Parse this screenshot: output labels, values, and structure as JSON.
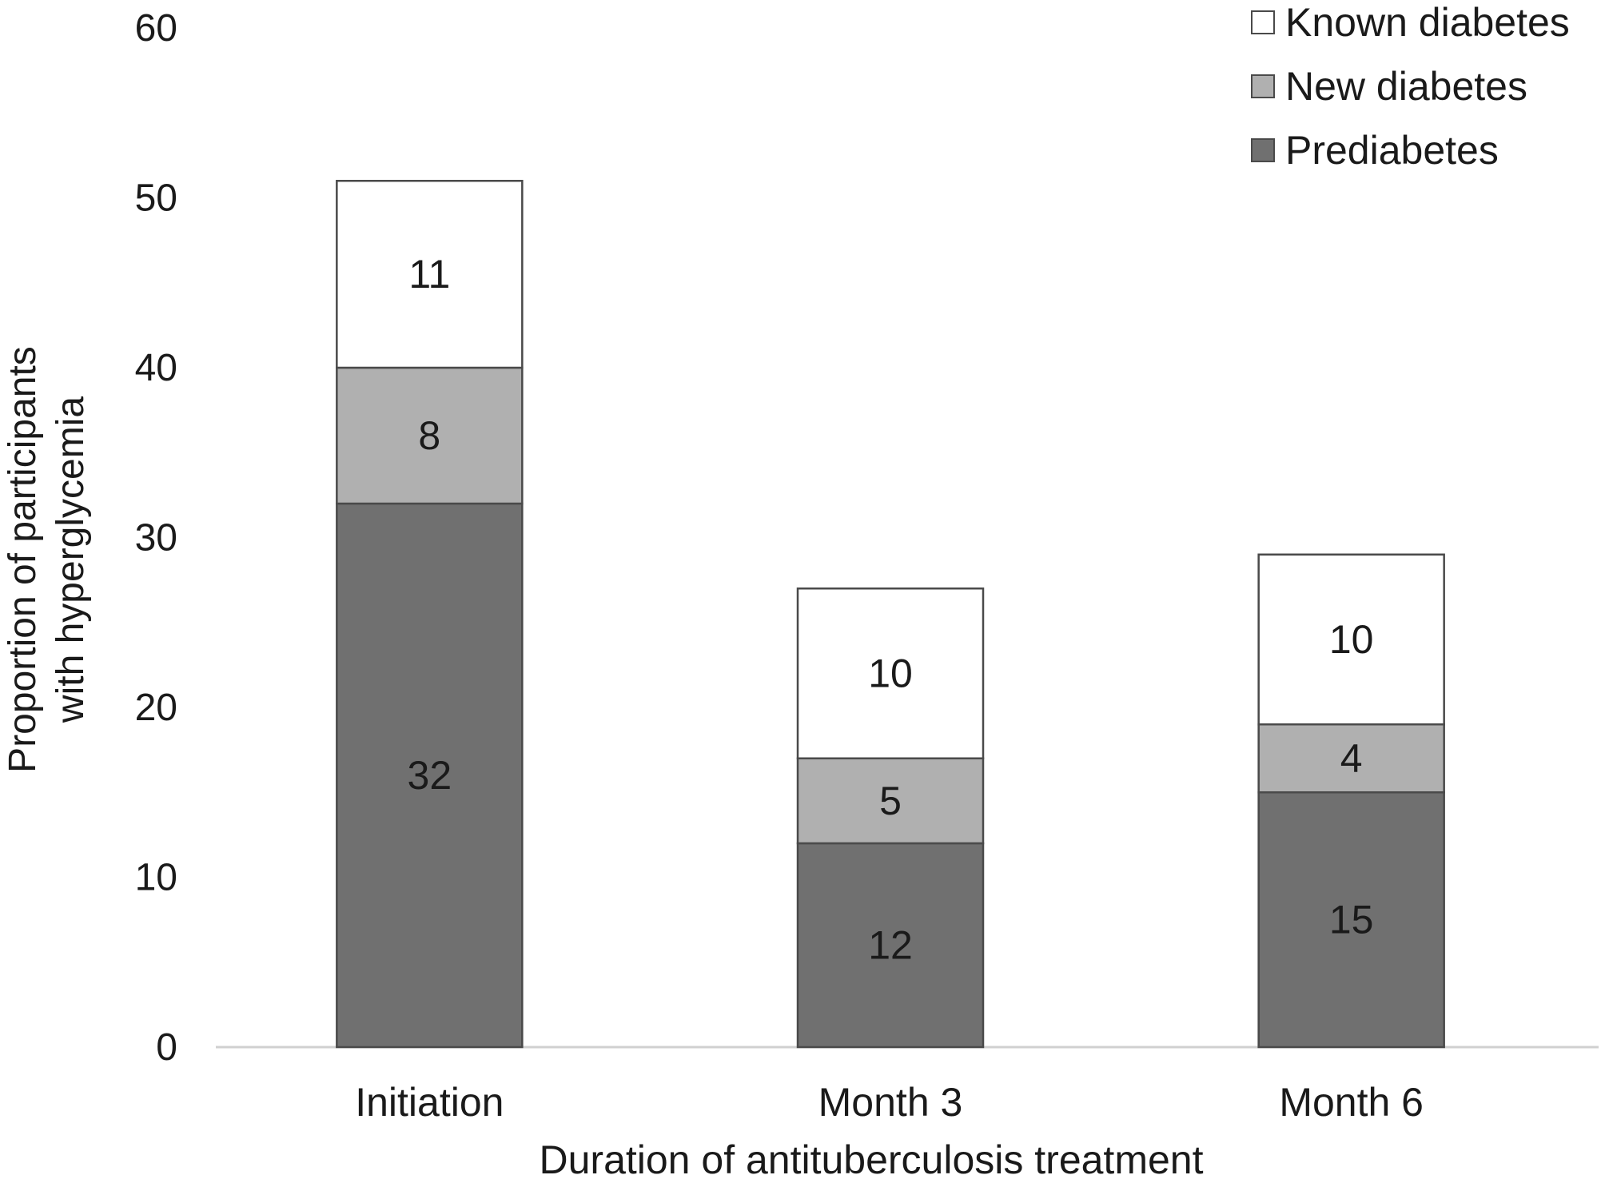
{
  "chart_data": {
    "type": "bar",
    "stacked": true,
    "categories": [
      "Initiation",
      "Month 3",
      "Month 6"
    ],
    "series": [
      {
        "name": "Prediabetes",
        "values": [
          32,
          12,
          15
        ],
        "color": "#707070"
      },
      {
        "name": "New diabetes",
        "values": [
          8,
          5,
          4
        ],
        "color": "#b0b0b0"
      },
      {
        "name": "Known diabetes",
        "values": [
          11,
          10,
          10
        ],
        "color": "#ffffff"
      }
    ],
    "legend_order": [
      "Known diabetes",
      "New diabetes",
      "Prediabetes"
    ],
    "legend_position": "top-right",
    "xlabel": "Duration of antituberculosis treatment",
    "ylabel_lines": [
      "Proportion of participants",
      "with hyperglycemia"
    ],
    "ylim": [
      0,
      60
    ],
    "yticks": [
      0,
      10,
      20,
      30,
      40,
      50,
      60
    ],
    "grid": false,
    "colors": {
      "outline": "#4a4a4a",
      "axis": "#d0d0d0",
      "text": "#1a1a1a"
    }
  }
}
